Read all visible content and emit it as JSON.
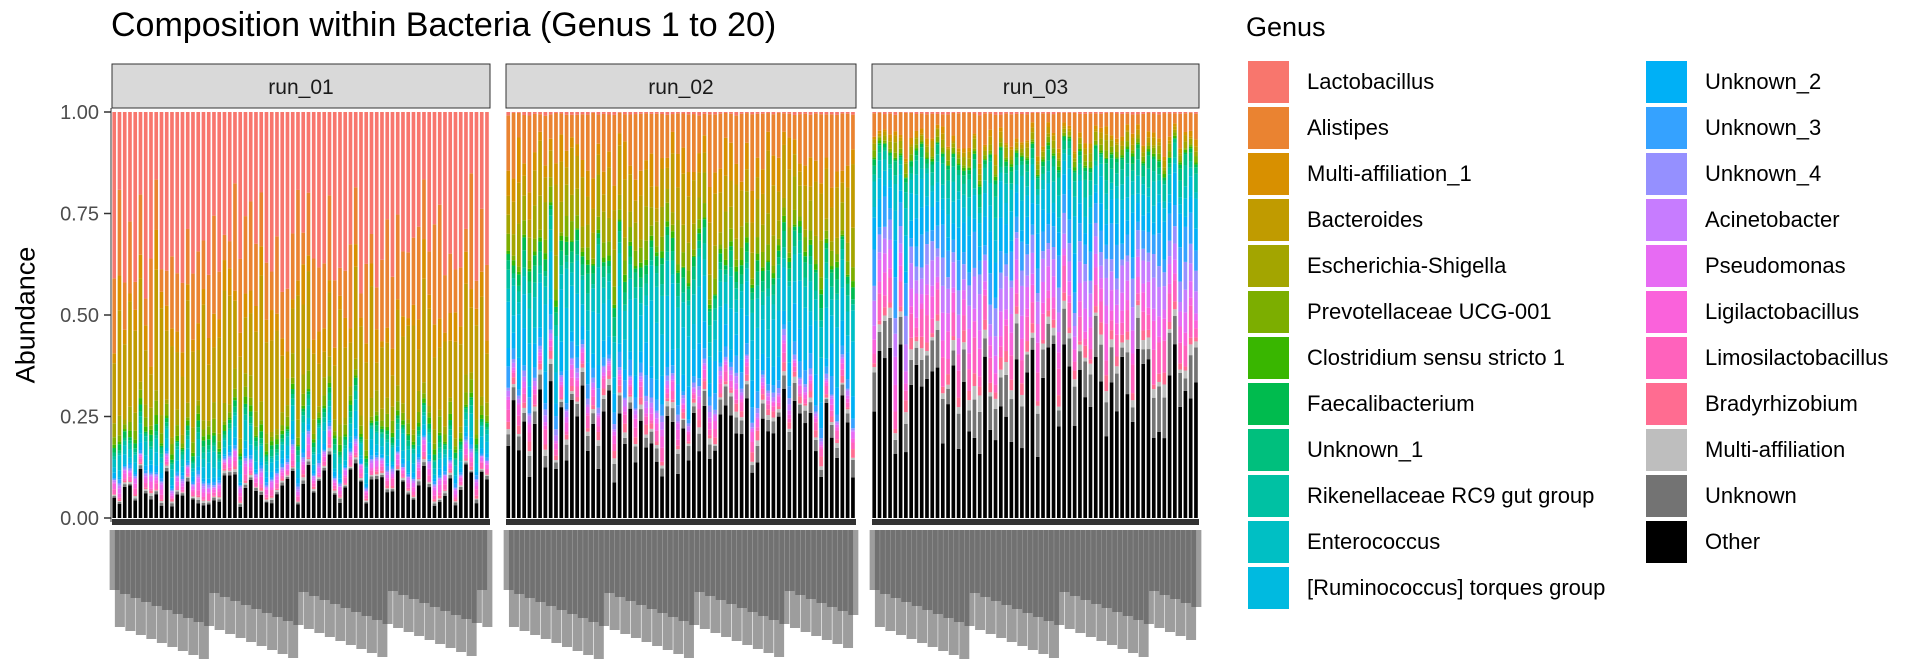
{
  "chart_data": {
    "type": "bar",
    "stacked": true,
    "title": "Composition within Bacteria (Genus 1 to 20)",
    "ylabel": "Abundance",
    "xlabel": "",
    "ylim": [
      0,
      1
    ],
    "yticks": [
      "0.00",
      "0.25",
      "0.50",
      "0.75",
      "1.00"
    ],
    "facets": [
      {
        "label": "run_01",
        "n_samples": 72,
        "seed": 11,
        "profile": {
          "Other": 0.08,
          "Unknown": 0.006,
          "Multi-affiliation": 0.004,
          "Bradyrhizobium": 0.004,
          "Limosilactobacillus": 0.01,
          "Ligilactobacillus": 0.01,
          "Pseudomonas": 0.008,
          "Acinetobacter": 0.004,
          "Unknown_4": 0.004,
          "Unknown_3": 0.006,
          "Unknown_2": 0.01,
          "[Ruminococcus] torques group": 0.02,
          "Enterococcus": 0.025,
          "Rikenellaceae RC9 gut group": 0.01,
          "Unknown_1": 0.01,
          "Faecalibacterium": 0.01,
          "Clostridium sensu stricto 1": 0.01,
          "Prevotellaceae UCG-001": 0.02,
          "Escherichia-Shigella": 0.03,
          "Bacteroides": 0.18,
          "Multi-affiliation_1": 0.05,
          "Alistipes": 0.15,
          "Lactobacillus": 0.32
        }
      },
      {
        "label": "run_02",
        "n_samples": 66,
        "seed": 23,
        "profile": {
          "Other": 0.23,
          "Unknown": 0.03,
          "Multi-affiliation": 0.01,
          "Bradyrhizobium": 0.015,
          "Limosilactobacillus": 0.02,
          "Ligilactobacillus": 0.015,
          "Pseudomonas": 0.01,
          "Acinetobacter": 0.01,
          "Unknown_4": 0.01,
          "Unknown_3": 0.03,
          "Unknown_2": 0.06,
          "[Ruminococcus] torques group": 0.1,
          "Enterococcus": 0.06,
          "Rikenellaceae RC9 gut group": 0.03,
          "Unknown_1": 0.03,
          "Faecalibacterium": 0.02,
          "Clostridium sensu stricto 1": 0.01,
          "Prevotellaceae UCG-001": 0.03,
          "Escherichia-Shigella": 0.06,
          "Bacteroides": 0.1,
          "Multi-affiliation_1": 0.06,
          "Alistipes": 0.12,
          "Lactobacillus": 0.005
        }
      },
      {
        "label": "run_03",
        "n_samples": 62,
        "seed": 37,
        "profile": {
          "Other": 0.33,
          "Unknown": 0.07,
          "Multi-affiliation": 0.02,
          "Bradyrhizobium": 0.02,
          "Limosilactobacillus": 0.05,
          "Ligilactobacillus": 0.04,
          "Pseudomonas": 0.04,
          "Acinetobacter": 0.05,
          "Unknown_4": 0.04,
          "Unknown_3": 0.06,
          "Unknown_2": 0.06,
          "[Ruminococcus] torques group": 0.05,
          "Enterococcus": 0.04,
          "Rikenellaceae RC9 gut group": 0.03,
          "Unknown_1": 0.02,
          "Faecalibacterium": 0.01,
          "Clostridium sensu stricto 1": 0.005,
          "Prevotellaceae UCG-001": 0.01,
          "Escherichia-Shigella": 0.015,
          "Bacteroides": 0.01,
          "Multi-affiliation_1": 0.01,
          "Alistipes": 0.06,
          "Lactobacillus": 0.004
        }
      }
    ],
    "legend": {
      "title": "Genus",
      "position": "right",
      "entries": [
        {
          "name": "Lactobacillus",
          "color": "#F8766D"
        },
        {
          "name": "Alistipes",
          "color": "#EA8331"
        },
        {
          "name": "Multi-affiliation_1",
          "color": "#D89000"
        },
        {
          "name": "Bacteroides",
          "color": "#C09B00"
        },
        {
          "name": "Escherichia-Shigella",
          "color": "#A3A500"
        },
        {
          "name": "Prevotellaceae UCG-001",
          "color": "#7CAE00"
        },
        {
          "name": "Clostridium sensu stricto 1",
          "color": "#39B600"
        },
        {
          "name": "Faecalibacterium",
          "color": "#00BB4E"
        },
        {
          "name": "Unknown_1",
          "color": "#00BF7D"
        },
        {
          "name": "Rikenellaceae RC9 gut group",
          "color": "#00C1A3"
        },
        {
          "name": "Enterococcus",
          "color": "#00BFC4"
        },
        {
          "name": "[Ruminococcus] torques group",
          "color": "#00BAE0"
        },
        {
          "name": "Unknown_2",
          "color": "#00B0F6"
        },
        {
          "name": "Unknown_3",
          "color": "#35A2FF"
        },
        {
          "name": "Unknown_4",
          "color": "#9590FF"
        },
        {
          "name": "Acinetobacter",
          "color": "#C77CFF"
        },
        {
          "name": "Pseudomonas",
          "color": "#E76BF3"
        },
        {
          "name": "Ligilactobacillus",
          "color": "#FA62DB"
        },
        {
          "name": "Limosilactobacillus",
          "color": "#FF62BC"
        },
        {
          "name": "Bradyrhizobium",
          "color": "#FF6C91"
        },
        {
          "name": "Multi-affiliation",
          "color": "#BEBEBE"
        },
        {
          "name": "Unknown",
          "color": "#737373"
        },
        {
          "name": "Other",
          "color": "#000000"
        }
      ]
    },
    "stack_order_bottom_to_top": [
      "Other",
      "Unknown",
      "Multi-affiliation",
      "Bradyrhizobium",
      "Limosilactobacillus",
      "Ligilactobacillus",
      "Pseudomonas",
      "Acinetobacter",
      "Unknown_4",
      "Unknown_3",
      "Unknown_2",
      "[Ruminococcus] torques group",
      "Enterococcus",
      "Rikenellaceae RC9 gut group",
      "Unknown_1",
      "Faecalibacterium",
      "Clostridium sensu stricto 1",
      "Prevotellaceae UCG-001",
      "Escherichia-Shigella",
      "Bacteroides",
      "Multi-affiliation_1",
      "Alistipes",
      "Lactobacillus"
    ],
    "grid": false,
    "facet_strip_color": "#D9D9D9",
    "panel_background": "#FFFFFF"
  }
}
